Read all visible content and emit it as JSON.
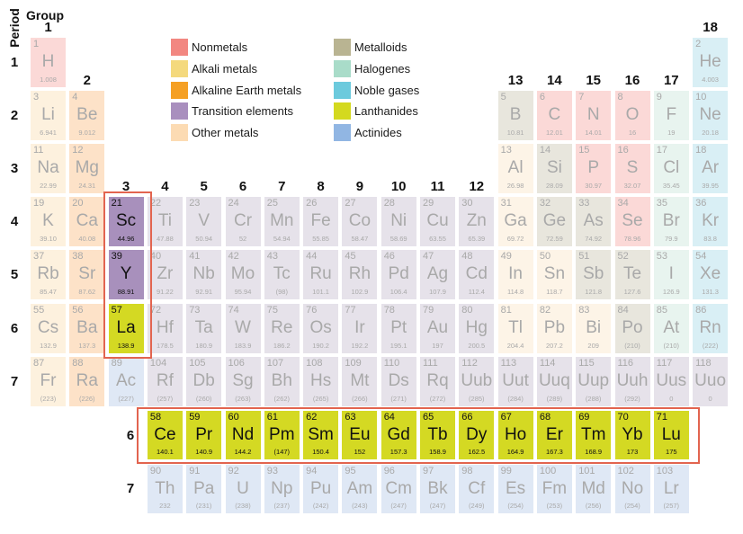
{
  "headers": {
    "period_label": "Period",
    "group_label": "Group"
  },
  "colors": {
    "faded": {
      "nonmetal": "#fbd9d7",
      "alkali": "#fdf1de",
      "alkaline": "#fde2c8",
      "transition": "#e6e2ea",
      "other": "#fdf4e7",
      "metalloid": "#e8e6dd",
      "halogen": "#e8f4ef",
      "noble": "#d9eff5",
      "lanthanide": "#f0f2c0",
      "actinide": "#dfe8f5"
    },
    "highlight": {
      "transition": "#a890bc",
      "lanthanide": "#d4d923"
    },
    "highlight_box": "#e2644f"
  },
  "legend": [
    {
      "label": "Nonmetals",
      "color": "#f28781"
    },
    {
      "label": "Alkali metals",
      "color": "#f4d97d"
    },
    {
      "label": "Alkaline Earth metals",
      "color": "#f5a024"
    },
    {
      "label": "Transition elements",
      "color": "#a98fbe"
    },
    {
      "label": "Other metals",
      "color": "#fcdbb3"
    },
    {
      "label": "Metalloids",
      "color": "#b9b492"
    },
    {
      "label": "Halogenes",
      "color": "#a9dcc9"
    },
    {
      "label": "Noble gases",
      "color": "#6ccadd"
    },
    {
      "label": "Lanthanides",
      "color": "#d4d91f"
    },
    {
      "label": "Actinides",
      "color": "#91b6e3"
    }
  ],
  "group_labels": [
    "1",
    "2",
    "3",
    "4",
    "5",
    "6",
    "7",
    "8",
    "9",
    "10",
    "11",
    "12",
    "13",
    "14",
    "15",
    "16",
    "17",
    "18"
  ],
  "period_labels": [
    "1",
    "2",
    "3",
    "4",
    "5",
    "6",
    "7"
  ],
  "series_labels": {
    "lanthanides": "6",
    "actinides": "7"
  },
  "elements": {
    "main": [
      {
        "n": "1",
        "s": "H",
        "m": "1.008",
        "c": "nonmetal",
        "g": 1,
        "p": 1
      },
      {
        "n": "2",
        "s": "He",
        "m": "4.003",
        "c": "noble",
        "g": 18,
        "p": 1
      },
      {
        "n": "3",
        "s": "Li",
        "m": "6.941",
        "c": "alkali",
        "g": 1,
        "p": 2
      },
      {
        "n": "4",
        "s": "Be",
        "m": "9.012",
        "c": "alkaline",
        "g": 2,
        "p": 2
      },
      {
        "n": "5",
        "s": "B",
        "m": "10.81",
        "c": "metalloid",
        "g": 13,
        "p": 2
      },
      {
        "n": "6",
        "s": "C",
        "m": "12.01",
        "c": "nonmetal",
        "g": 14,
        "p": 2
      },
      {
        "n": "7",
        "s": "N",
        "m": "14.01",
        "c": "nonmetal",
        "g": 15,
        "p": 2
      },
      {
        "n": "8",
        "s": "O",
        "m": "16",
        "c": "nonmetal",
        "g": 16,
        "p": 2
      },
      {
        "n": "9",
        "s": "F",
        "m": "19",
        "c": "halogen",
        "g": 17,
        "p": 2
      },
      {
        "n": "10",
        "s": "Ne",
        "m": "20.18",
        "c": "noble",
        "g": 18,
        "p": 2
      },
      {
        "n": "11",
        "s": "Na",
        "m": "22.99",
        "c": "alkali",
        "g": 1,
        "p": 3
      },
      {
        "n": "12",
        "s": "Mg",
        "m": "24.31",
        "c": "alkaline",
        "g": 2,
        "p": 3
      },
      {
        "n": "13",
        "s": "Al",
        "m": "26.98",
        "c": "other",
        "g": 13,
        "p": 3
      },
      {
        "n": "14",
        "s": "Si",
        "m": "28.09",
        "c": "metalloid",
        "g": 14,
        "p": 3
      },
      {
        "n": "15",
        "s": "P",
        "m": "30.97",
        "c": "nonmetal",
        "g": 15,
        "p": 3
      },
      {
        "n": "16",
        "s": "S",
        "m": "32.07",
        "c": "nonmetal",
        "g": 16,
        "p": 3
      },
      {
        "n": "17",
        "s": "Cl",
        "m": "35.45",
        "c": "halogen",
        "g": 17,
        "p": 3
      },
      {
        "n": "18",
        "s": "Ar",
        "m": "39.95",
        "c": "noble",
        "g": 18,
        "p": 3
      },
      {
        "n": "19",
        "s": "K",
        "m": "39.10",
        "c": "alkali",
        "g": 1,
        "p": 4
      },
      {
        "n": "20",
        "s": "Ca",
        "m": "40.08",
        "c": "alkaline",
        "g": 2,
        "p": 4
      },
      {
        "n": "21",
        "s": "Sc",
        "m": "44.96",
        "c": "transition",
        "g": 3,
        "p": 4,
        "hl": true
      },
      {
        "n": "22",
        "s": "Ti",
        "m": "47.88",
        "c": "transition",
        "g": 4,
        "p": 4
      },
      {
        "n": "23",
        "s": "V",
        "m": "50.94",
        "c": "transition",
        "g": 5,
        "p": 4
      },
      {
        "n": "24",
        "s": "Cr",
        "m": "52",
        "c": "transition",
        "g": 6,
        "p": 4
      },
      {
        "n": "25",
        "s": "Mn",
        "m": "54.94",
        "c": "transition",
        "g": 7,
        "p": 4
      },
      {
        "n": "26",
        "s": "Fe",
        "m": "55.85",
        "c": "transition",
        "g": 8,
        "p": 4
      },
      {
        "n": "27",
        "s": "Co",
        "m": "58.47",
        "c": "transition",
        "g": 9,
        "p": 4
      },
      {
        "n": "28",
        "s": "Ni",
        "m": "58.69",
        "c": "transition",
        "g": 10,
        "p": 4
      },
      {
        "n": "29",
        "s": "Cu",
        "m": "63.55",
        "c": "transition",
        "g": 11,
        "p": 4
      },
      {
        "n": "30",
        "s": "Zn",
        "m": "65.39",
        "c": "transition",
        "g": 12,
        "p": 4
      },
      {
        "n": "31",
        "s": "Ga",
        "m": "69.72",
        "c": "other",
        "g": 13,
        "p": 4
      },
      {
        "n": "32",
        "s": "Ge",
        "m": "72.59",
        "c": "metalloid",
        "g": 14,
        "p": 4
      },
      {
        "n": "33",
        "s": "As",
        "m": "74.92",
        "c": "metalloid",
        "g": 15,
        "p": 4
      },
      {
        "n": "34",
        "s": "Se",
        "m": "78.96",
        "c": "nonmetal",
        "g": 16,
        "p": 4
      },
      {
        "n": "35",
        "s": "Br",
        "m": "79.9",
        "c": "halogen",
        "g": 17,
        "p": 4
      },
      {
        "n": "36",
        "s": "Kr",
        "m": "83.8",
        "c": "noble",
        "g": 18,
        "p": 4
      },
      {
        "n": "37",
        "s": "Rb",
        "m": "85.47",
        "c": "alkali",
        "g": 1,
        "p": 5
      },
      {
        "n": "38",
        "s": "Sr",
        "m": "87.62",
        "c": "alkaline",
        "g": 2,
        "p": 5
      },
      {
        "n": "39",
        "s": "Y",
        "m": "88.91",
        "c": "transition",
        "g": 3,
        "p": 5,
        "hl": true
      },
      {
        "n": "40",
        "s": "Zr",
        "m": "91.22",
        "c": "transition",
        "g": 4,
        "p": 5
      },
      {
        "n": "41",
        "s": "Nb",
        "m": "92.91",
        "c": "transition",
        "g": 5,
        "p": 5
      },
      {
        "n": "42",
        "s": "Mo",
        "m": "95.94",
        "c": "transition",
        "g": 6,
        "p": 5
      },
      {
        "n": "43",
        "s": "Tc",
        "m": "(98)",
        "c": "transition",
        "g": 7,
        "p": 5
      },
      {
        "n": "44",
        "s": "Ru",
        "m": "101.1",
        "c": "transition",
        "g": 8,
        "p": 5
      },
      {
        "n": "45",
        "s": "Rh",
        "m": "102.9",
        "c": "transition",
        "g": 9,
        "p": 5
      },
      {
        "n": "46",
        "s": "Pd",
        "m": "106.4",
        "c": "transition",
        "g": 10,
        "p": 5
      },
      {
        "n": "47",
        "s": "Ag",
        "m": "107.9",
        "c": "transition",
        "g": 11,
        "p": 5
      },
      {
        "n": "48",
        "s": "Cd",
        "m": "112.4",
        "c": "transition",
        "g": 12,
        "p": 5
      },
      {
        "n": "49",
        "s": "In",
        "m": "114.8",
        "c": "other",
        "g": 13,
        "p": 5
      },
      {
        "n": "50",
        "s": "Sn",
        "m": "118.7",
        "c": "other",
        "g": 14,
        "p": 5
      },
      {
        "n": "51",
        "s": "Sb",
        "m": "121.8",
        "c": "metalloid",
        "g": 15,
        "p": 5
      },
      {
        "n": "52",
        "s": "Te",
        "m": "127.6",
        "c": "metalloid",
        "g": 16,
        "p": 5
      },
      {
        "n": "53",
        "s": "I",
        "m": "126.9",
        "c": "halogen",
        "g": 17,
        "p": 5
      },
      {
        "n": "54",
        "s": "Xe",
        "m": "131.3",
        "c": "noble",
        "g": 18,
        "p": 5
      },
      {
        "n": "55",
        "s": "Cs",
        "m": "132.9",
        "c": "alkali",
        "g": 1,
        "p": 6
      },
      {
        "n": "56",
        "s": "Ba",
        "m": "137.3",
        "c": "alkaline",
        "g": 2,
        "p": 6
      },
      {
        "n": "57",
        "s": "La",
        "m": "138.9",
        "c": "lanthanide",
        "g": 3,
        "p": 6,
        "hl": true
      },
      {
        "n": "72",
        "s": "Hf",
        "m": "178.5",
        "c": "transition",
        "g": 4,
        "p": 6
      },
      {
        "n": "73",
        "s": "Ta",
        "m": "180.9",
        "c": "transition",
        "g": 5,
        "p": 6
      },
      {
        "n": "74",
        "s": "W",
        "m": "183.9",
        "c": "transition",
        "g": 6,
        "p": 6
      },
      {
        "n": "75",
        "s": "Re",
        "m": "186.2",
        "c": "transition",
        "g": 7,
        "p": 6
      },
      {
        "n": "76",
        "s": "Os",
        "m": "190.2",
        "c": "transition",
        "g": 8,
        "p": 6
      },
      {
        "n": "77",
        "s": "Ir",
        "m": "192.2",
        "c": "transition",
        "g": 9,
        "p": 6
      },
      {
        "n": "78",
        "s": "Pt",
        "m": "195.1",
        "c": "transition",
        "g": 10,
        "p": 6
      },
      {
        "n": "79",
        "s": "Au",
        "m": "197",
        "c": "transition",
        "g": 11,
        "p": 6
      },
      {
        "n": "80",
        "s": "Hg",
        "m": "200.5",
        "c": "transition",
        "g": 12,
        "p": 6
      },
      {
        "n": "81",
        "s": "Tl",
        "m": "204.4",
        "c": "other",
        "g": 13,
        "p": 6
      },
      {
        "n": "82",
        "s": "Pb",
        "m": "207.2",
        "c": "other",
        "g": 14,
        "p": 6
      },
      {
        "n": "83",
        "s": "Bi",
        "m": "209",
        "c": "other",
        "g": 15,
        "p": 6
      },
      {
        "n": "84",
        "s": "Po",
        "m": "(210)",
        "c": "metalloid",
        "g": 16,
        "p": 6
      },
      {
        "n": "85",
        "s": "At",
        "m": "(210)",
        "c": "halogen",
        "g": 17,
        "p": 6
      },
      {
        "n": "86",
        "s": "Rn",
        "m": "(222)",
        "c": "noble",
        "g": 18,
        "p": 6
      },
      {
        "n": "87",
        "s": "Fr",
        "m": "(223)",
        "c": "alkali",
        "g": 1,
        "p": 7
      },
      {
        "n": "88",
        "s": "Ra",
        "m": "(226)",
        "c": "alkaline",
        "g": 2,
        "p": 7
      },
      {
        "n": "89",
        "s": "Ac",
        "m": "(227)",
        "c": "actinide",
        "g": 3,
        "p": 7
      },
      {
        "n": "104",
        "s": "Rf",
        "m": "(257)",
        "c": "transition",
        "g": 4,
        "p": 7
      },
      {
        "n": "105",
        "s": "Db",
        "m": "(260)",
        "c": "transition",
        "g": 5,
        "p": 7
      },
      {
        "n": "106",
        "s": "Sg",
        "m": "(263)",
        "c": "transition",
        "g": 6,
        "p": 7
      },
      {
        "n": "107",
        "s": "Bh",
        "m": "(262)",
        "c": "transition",
        "g": 7,
        "p": 7
      },
      {
        "n": "108",
        "s": "Hs",
        "m": "(265)",
        "c": "transition",
        "g": 8,
        "p": 7
      },
      {
        "n": "109",
        "s": "Mt",
        "m": "(266)",
        "c": "transition",
        "g": 9,
        "p": 7
      },
      {
        "n": "110",
        "s": "Ds",
        "m": "(271)",
        "c": "transition",
        "g": 10,
        "p": 7
      },
      {
        "n": "111",
        "s": "Rq",
        "m": "(272)",
        "c": "transition",
        "g": 11,
        "p": 7
      },
      {
        "n": "112",
        "s": "Uub",
        "m": "(285)",
        "c": "transition",
        "g": 12,
        "p": 7
      },
      {
        "n": "113",
        "s": "Uut",
        "m": "(284)",
        "c": "transition",
        "g": 13,
        "p": 7
      },
      {
        "n": "114",
        "s": "Uuq",
        "m": "(289)",
        "c": "transition",
        "g": 14,
        "p": 7
      },
      {
        "n": "115",
        "s": "Uup",
        "m": "(288)",
        "c": "transition",
        "g": 15,
        "p": 7
      },
      {
        "n": "116",
        "s": "Uuh",
        "m": "(292)",
        "c": "transition",
        "g": 16,
        "p": 7
      },
      {
        "n": "117",
        "s": "Uus",
        "m": "0",
        "c": "transition",
        "g": 17,
        "p": 7
      },
      {
        "n": "118",
        "s": "Uuo",
        "m": "0",
        "c": "transition",
        "g": 18,
        "p": 7
      }
    ],
    "lanthanides": [
      {
        "n": "58",
        "s": "Ce",
        "m": "140.1",
        "c": "lanthanide",
        "hl": true
      },
      {
        "n": "59",
        "s": "Pr",
        "m": "140.9",
        "c": "lanthanide",
        "hl": true
      },
      {
        "n": "60",
        "s": "Nd",
        "m": "144.2",
        "c": "lanthanide",
        "hl": true
      },
      {
        "n": "61",
        "s": "Pm",
        "m": "(147)",
        "c": "lanthanide",
        "hl": true
      },
      {
        "n": "62",
        "s": "Sm",
        "m": "150.4",
        "c": "lanthanide",
        "hl": true
      },
      {
        "n": "63",
        "s": "Eu",
        "m": "152",
        "c": "lanthanide",
        "hl": true
      },
      {
        "n": "64",
        "s": "Gd",
        "m": "157.3",
        "c": "lanthanide",
        "hl": true
      },
      {
        "n": "65",
        "s": "Tb",
        "m": "158.9",
        "c": "lanthanide",
        "hl": true
      },
      {
        "n": "66",
        "s": "Dy",
        "m": "162.5",
        "c": "lanthanide",
        "hl": true
      },
      {
        "n": "67",
        "s": "Ho",
        "m": "164.9",
        "c": "lanthanide",
        "hl": true
      },
      {
        "n": "68",
        "s": "Er",
        "m": "167.3",
        "c": "lanthanide",
        "hl": true
      },
      {
        "n": "69",
        "s": "Tm",
        "m": "168.9",
        "c": "lanthanide",
        "hl": true
      },
      {
        "n": "70",
        "s": "Yb",
        "m": "173",
        "c": "lanthanide",
        "hl": true
      },
      {
        "n": "71",
        "s": "Lu",
        "m": "175",
        "c": "lanthanide",
        "hl": true
      }
    ],
    "actinides": [
      {
        "n": "90",
        "s": "Th",
        "m": "232",
        "c": "actinide"
      },
      {
        "n": "91",
        "s": "Pa",
        "m": "(231)",
        "c": "actinide"
      },
      {
        "n": "92",
        "s": "U",
        "m": "(238)",
        "c": "actinide"
      },
      {
        "n": "93",
        "s": "Np",
        "m": "(237)",
        "c": "actinide"
      },
      {
        "n": "94",
        "s": "Pu",
        "m": "(242)",
        "c": "actinide"
      },
      {
        "n": "95",
        "s": "Am",
        "m": "(243)",
        "c": "actinide"
      },
      {
        "n": "96",
        "s": "Cm",
        "m": "(247)",
        "c": "actinide"
      },
      {
        "n": "97",
        "s": "Bk",
        "m": "(247)",
        "c": "actinide"
      },
      {
        "n": "98",
        "s": "Cf",
        "m": "(249)",
        "c": "actinide"
      },
      {
        "n": "99",
        "s": "Es",
        "m": "(254)",
        "c": "actinide"
      },
      {
        "n": "100",
        "s": "Fm",
        "m": "(253)",
        "c": "actinide"
      },
      {
        "n": "101",
        "s": "Md",
        "m": "(256)",
        "c": "actinide"
      },
      {
        "n": "102",
        "s": "No",
        "m": "(254)",
        "c": "actinide"
      },
      {
        "n": "103",
        "s": "Lr",
        "m": "(257)",
        "c": "actinide"
      }
    ]
  }
}
